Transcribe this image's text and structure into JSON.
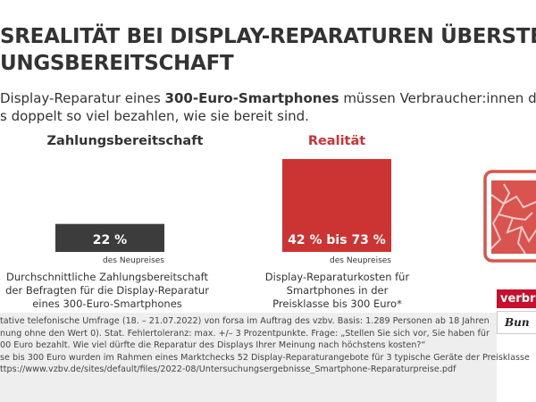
{
  "title_lines": [
    "SREALITÄT BEI DISPLAY-REPARATUREN ÜBERSTEIGT",
    "UNGSBEREITSCHAFT"
  ],
  "subtitle": {
    "line1_pre": "Display-Reparatur eines ",
    "line1_bold": "300-Euro-Smartphones",
    "line1_post": " müssen Verbraucher:innen durchschni",
    "line2": "s doppelt so viel bezahlen, wie sie bereit sind."
  },
  "chart_data": {
    "type": "bar",
    "unit": "des Neupreises",
    "categories": [
      "Zahlungsbereitschaft",
      "Realität"
    ],
    "series": [
      {
        "values": [
          22,
          73
        ]
      }
    ],
    "ranges": [
      null,
      [
        42,
        73
      ]
    ],
    "data_labels": [
      "22 %",
      "42 % bis 73 %"
    ],
    "value_label": "des Neupreises",
    "descriptions": [
      "Durchschnittliche Zahlungsbereitschaft der Befragten für die Display-Reparatur eines 300-Euro-Smartphones",
      "Display-Reparaturkosten für Smartphones in der Preisklasse bis 300 Euro*"
    ],
    "colors": [
      "#3c3c3c",
      "#cc3333"
    ]
  },
  "colors": {
    "accent": "#cc3333",
    "dark_bar": "#3c3c3c",
    "icon": "#d9534f",
    "footer_bg": "#eeeeee",
    "logo_red": "#c8102e"
  },
  "icon": "broken-smartphone-icon",
  "logo": {
    "top": "verbra",
    "bottom": "Bun"
  },
  "footer_lines": [
    "tative telefonische Umfrage (18. – 21.07.2022) von forsa im Auftrag des vzbv. Basis: 1.289 Personen ab 18 Jahren",
    "nung ohne den Wert 0). Stat. Fehlertoleranz: max. +/– 3 Prozentpunkte. Frage: „Stellen Sie sich vor, Sie haben für",
    "00 Euro bezahlt. Wie viel dürfte die Reparatur des Displays Ihrer Meinung nach höchstens kosten?“",
    "se bis 300 Euro wurden im Rahmen eines Marktchecks 52 Display-Reparaturangebote für 3 typische Geräte der Preisklasse",
    "ttps://www.vzbv.de/sites/default/files/2022-08/Untersuchungsergebnisse_Smartphone-Reparaturpreise.pdf"
  ]
}
